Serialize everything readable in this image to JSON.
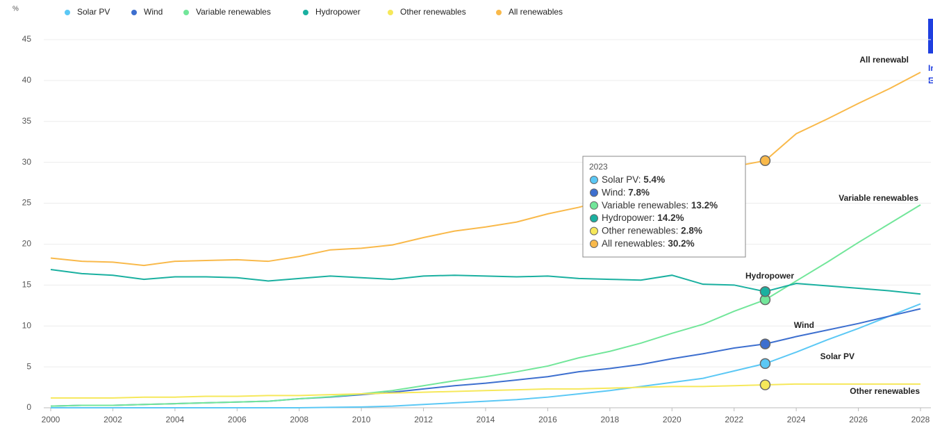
{
  "chart_data": {
    "type": "line",
    "y_label": "%",
    "x": [
      2000,
      2001,
      2002,
      2003,
      2004,
      2005,
      2006,
      2007,
      2008,
      2009,
      2010,
      2011,
      2012,
      2013,
      2014,
      2015,
      2016,
      2017,
      2018,
      2019,
      2020,
      2021,
      2022,
      2023,
      2024,
      2025,
      2026,
      2027,
      2028
    ],
    "xlim": [
      2000,
      2028
    ],
    "xticks": [
      2000,
      2002,
      2004,
      2006,
      2008,
      2010,
      2012,
      2014,
      2016,
      2018,
      2020,
      2022,
      2024,
      2026,
      2028
    ],
    "ylim": [
      0,
      45
    ],
    "yticks": [
      0,
      5,
      10,
      15,
      20,
      25,
      30,
      35,
      40,
      45
    ],
    "grid": true,
    "series": [
      {
        "name": "Solar PV",
        "color": "#5bc8f5",
        "values": [
          0,
          0,
          0,
          0,
          0,
          0,
          0,
          0,
          0,
          0.05,
          0.1,
          0.2,
          0.4,
          0.6,
          0.8,
          1.0,
          1.3,
          1.7,
          2.1,
          2.6,
          3.1,
          3.6,
          4.5,
          5.4,
          6.8,
          8.3,
          9.7,
          11.2,
          12.7
        ]
      },
      {
        "name": "Wind",
        "color": "#3d6fcf",
        "values": [
          0.2,
          0.3,
          0.3,
          0.4,
          0.5,
          0.6,
          0.7,
          0.8,
          1.1,
          1.3,
          1.6,
          1.9,
          2.3,
          2.7,
          3.0,
          3.4,
          3.8,
          4.4,
          4.8,
          5.3,
          6.0,
          6.6,
          7.3,
          7.8,
          8.7,
          9.5,
          10.3,
          11.2,
          12.1
        ]
      },
      {
        "name": "Variable renewables",
        "color": "#72e69a",
        "values": [
          0.2,
          0.3,
          0.3,
          0.4,
          0.5,
          0.6,
          0.7,
          0.8,
          1.1,
          1.35,
          1.7,
          2.1,
          2.7,
          3.3,
          3.8,
          4.4,
          5.1,
          6.1,
          6.9,
          7.9,
          9.1,
          10.2,
          11.8,
          13.2,
          15.5,
          17.8,
          20.2,
          22.5,
          24.8
        ]
      },
      {
        "name": "Hydropower",
        "color": "#1ab0a0",
        "values": [
          16.9,
          16.4,
          16.2,
          15.7,
          16.0,
          16.0,
          15.9,
          15.5,
          15.8,
          16.1,
          15.9,
          15.7,
          16.1,
          16.2,
          16.1,
          16.0,
          16.1,
          15.8,
          15.7,
          15.6,
          16.2,
          15.1,
          15.0,
          14.2,
          15.2,
          14.9,
          14.6,
          14.3,
          13.9
        ]
      },
      {
        "name": "Other renewables",
        "color": "#f6e85a",
        "values": [
          1.2,
          1.2,
          1.2,
          1.3,
          1.3,
          1.4,
          1.4,
          1.5,
          1.5,
          1.6,
          1.7,
          1.8,
          1.9,
          2.0,
          2.1,
          2.2,
          2.3,
          2.3,
          2.4,
          2.5,
          2.6,
          2.6,
          2.7,
          2.8,
          2.9,
          2.9,
          2.9,
          2.9,
          2.9
        ]
      },
      {
        "name": "All renewables",
        "color": "#f9b94a",
        "values": [
          18.3,
          17.9,
          17.8,
          17.4,
          17.9,
          18.0,
          18.1,
          17.9,
          18.5,
          19.3,
          19.5,
          19.9,
          20.8,
          21.6,
          22.1,
          22.7,
          23.7,
          24.5,
          25.5,
          26.5,
          28.0,
          28.8,
          29.5,
          30.2,
          33.5,
          35.3,
          37.2,
          39.0,
          41.0
        ]
      }
    ],
    "annotations": [
      "Solar PV",
      "Wind",
      "Variable renewables",
      "Hydropower",
      "Other renewables",
      "All renewabl"
    ],
    "tooltip": {
      "title": "2023",
      "index": 23,
      "value_labels": [
        "5.4%",
        "7.8%",
        "13.2%",
        "14.2%",
        "2.8%",
        "30.2%"
      ]
    },
    "logo": [
      "In",
      "E"
    ]
  }
}
